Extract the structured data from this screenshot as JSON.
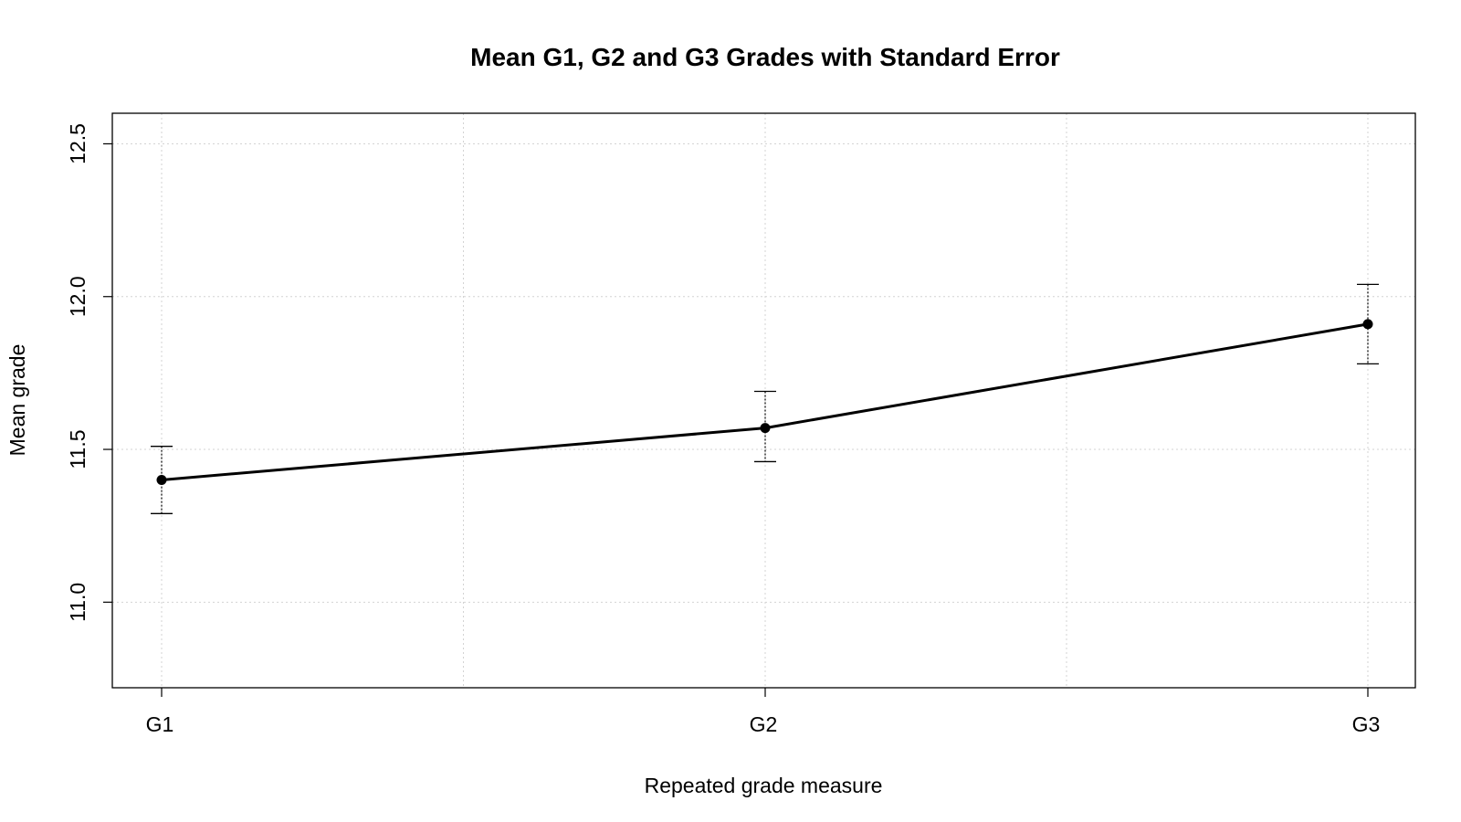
{
  "chart_data": {
    "type": "line",
    "title": "Mean G1, G2 and G3 Grades with Standard Error",
    "xlabel": "Repeated grade measure",
    "ylabel": "Mean grade",
    "categories": [
      "G1",
      "G2",
      "G3"
    ],
    "values": [
      11.4,
      11.57,
      11.91
    ],
    "error_lower": [
      11.29,
      11.46,
      11.78
    ],
    "error_upper": [
      11.51,
      11.69,
      12.04
    ],
    "ylim": [
      10.72,
      12.6
    ],
    "yticks": [
      "11.0",
      "11.5",
      "12.0",
      "12.5"
    ],
    "grid": true,
    "colors": {
      "line": "#000000",
      "grid": "#d3d3d3"
    }
  }
}
